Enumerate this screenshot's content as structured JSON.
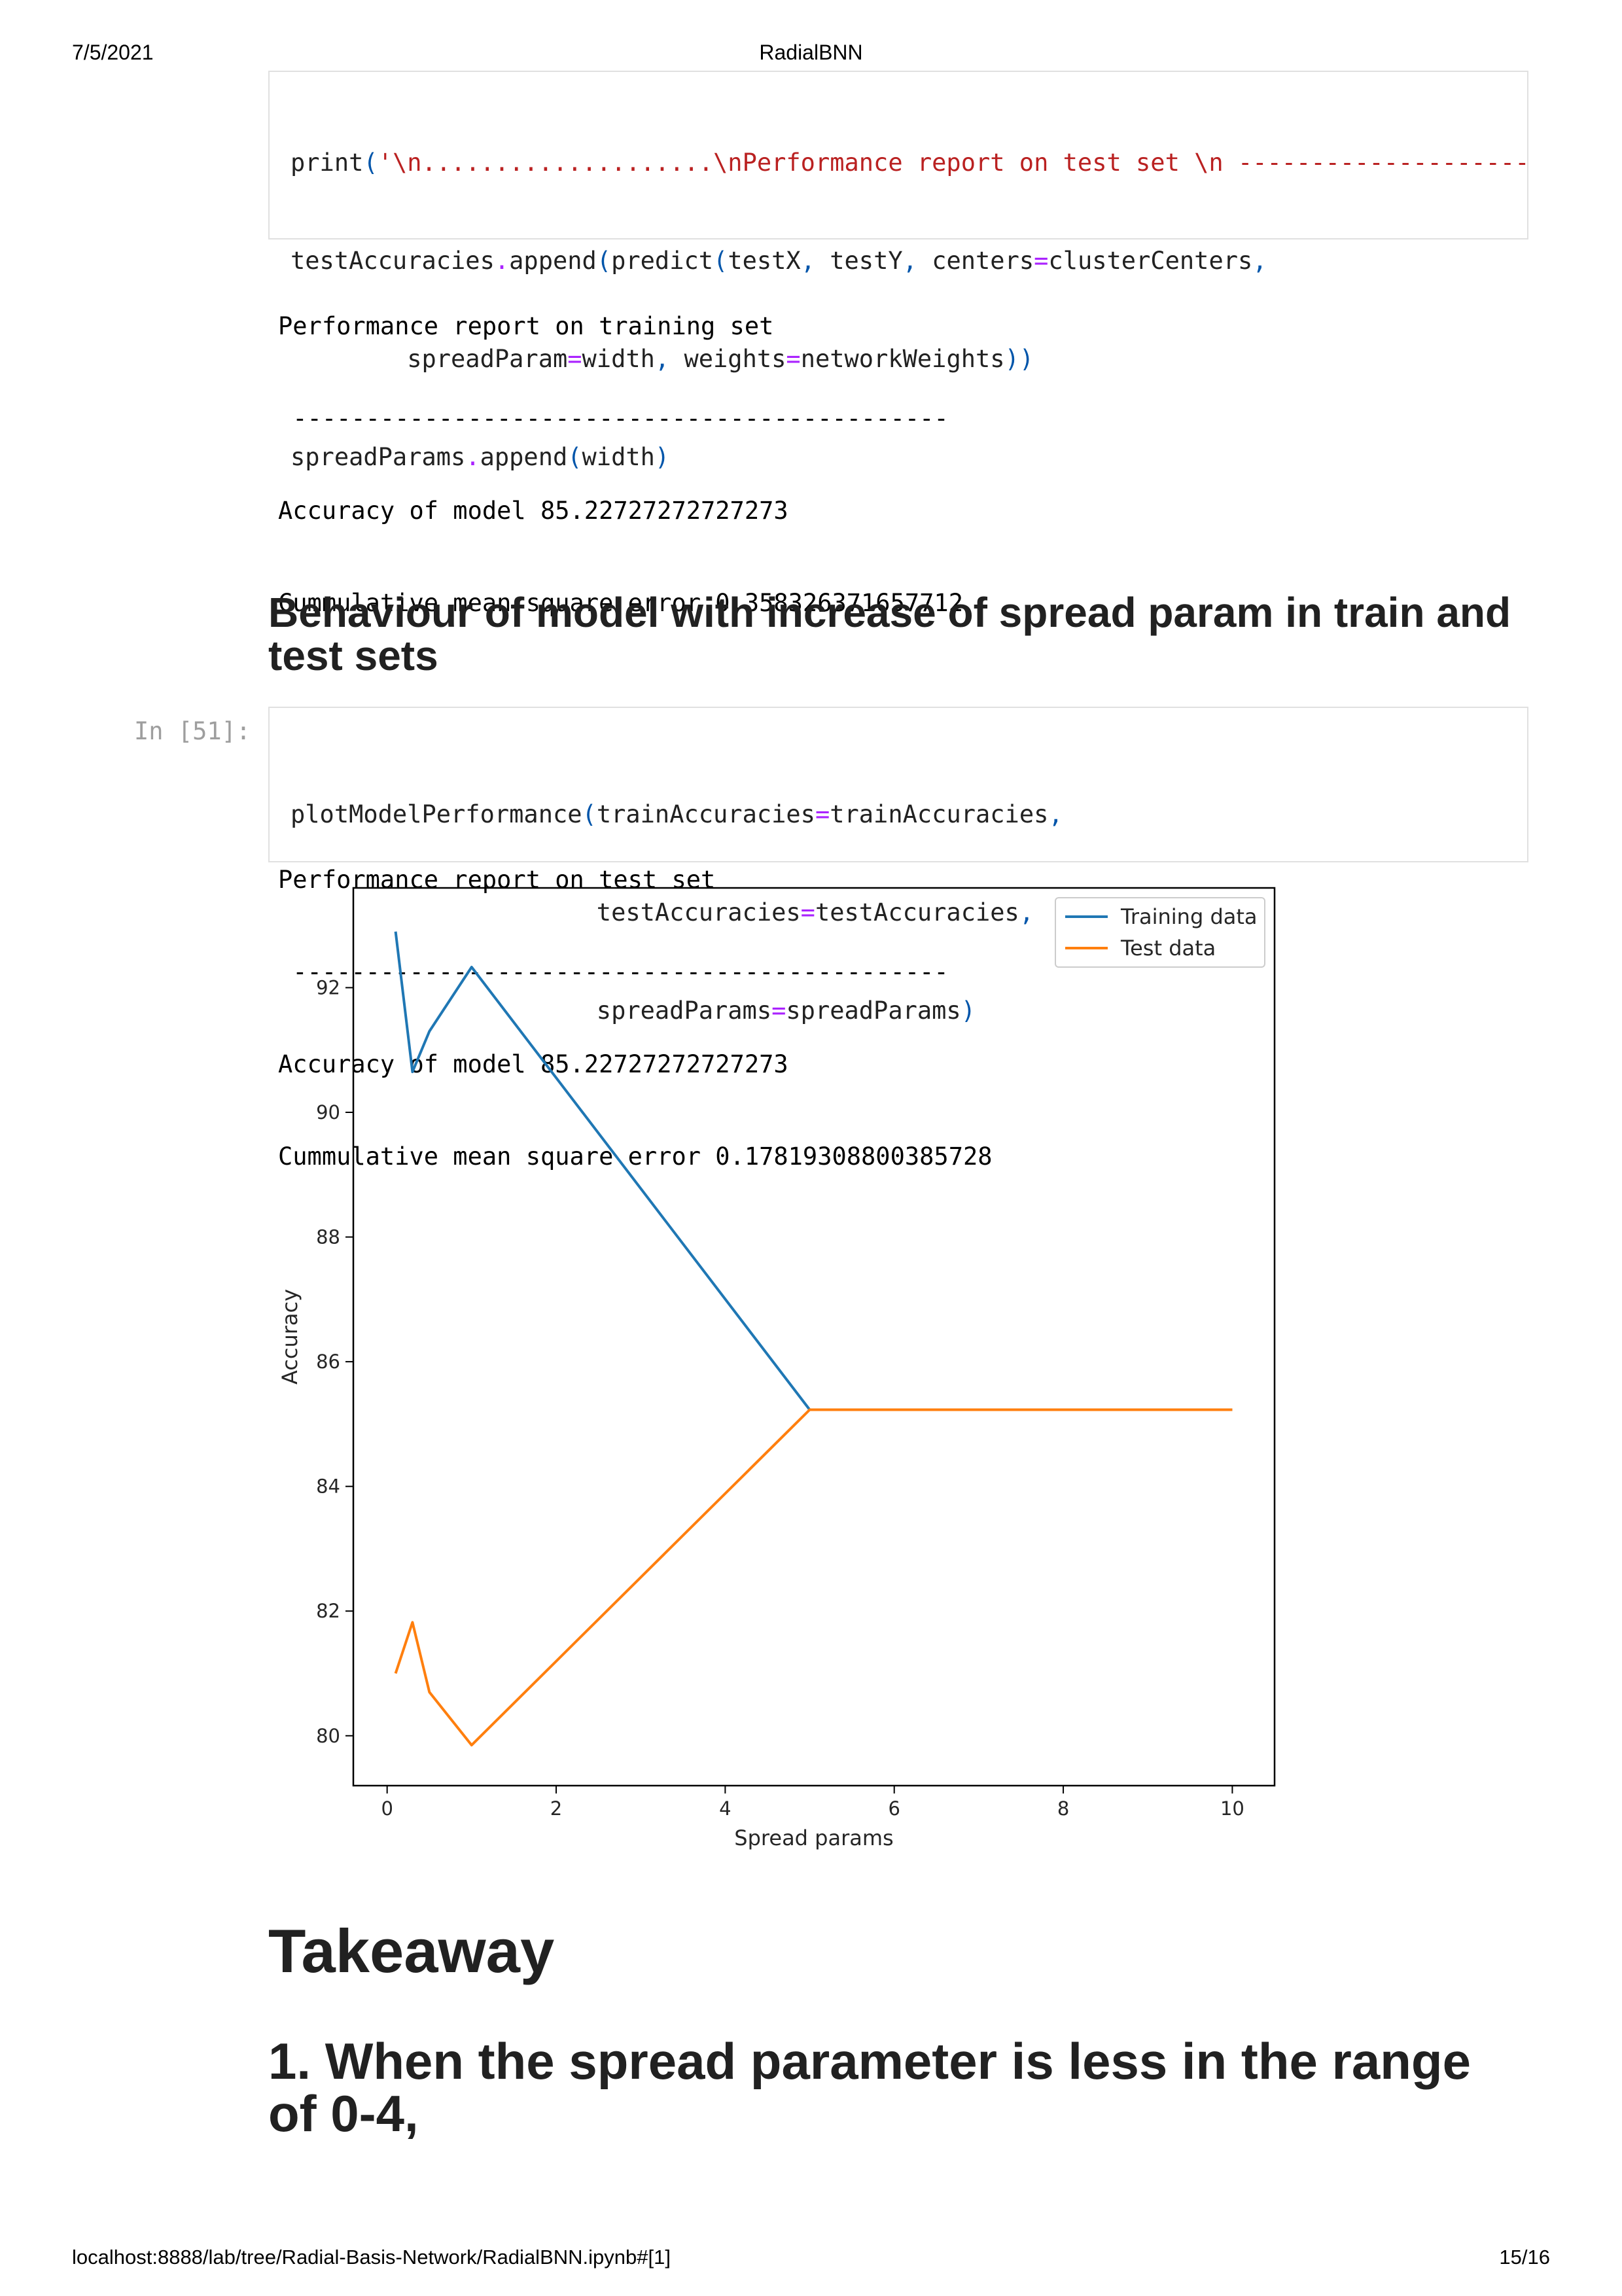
{
  "header": {
    "date": "7/5/2021",
    "title": "RadialBNN"
  },
  "footer": {
    "url": "localhost:8888/lab/tree/Radial-Basis-Network/RadialBNN.ipynb#[1]",
    "page": "15/16"
  },
  "cell1": {
    "line1": {
      "p1": "print",
      "p2": "(",
      "p3": "'\\n....................\\nPerformance report on test set \\n --------------------"
    },
    "line2": {
      "p1": "testAccuracies",
      "p2": ".",
      "p3": "append",
      "p4": "(",
      "p5": "predict",
      "p6": "(",
      "p7": "testX",
      "p8": ",",
      "p9": " testY",
      "p10": ",",
      "p11": " centers",
      "p12": "=",
      "p13": "clusterCenters",
      "p14": ","
    },
    "line3": {
      "p1": "        spreadParam",
      "p2": "=",
      "p3": "width",
      "p4": ",",
      "p5": " weights",
      "p6": "=",
      "p7": "networkWeights",
      "p8": "))"
    },
    "line4": {
      "p1": "spreadParams",
      "p2": ".",
      "p3": "append",
      "p4": "(",
      "p5": "width",
      "p6": ")"
    }
  },
  "output1": {
    "lines": [
      "Performance report on training set",
      " ---------------------------------------------",
      "Accuracy of model 85.22727272727273",
      "Cummulative mean square error 0.358326371657712",
      "",
      "....................",
      "Performance report on test set",
      " ---------------------------------------------",
      "Accuracy of model 85.22727272727273",
      "Cummulative mean square error 0.17819308800385728"
    ]
  },
  "heading_behaviour": "Behaviour of model with increase of spread param in train and test sets",
  "cell2": {
    "prompt": "In [51]:",
    "line1": {
      "p1": "plotModelPerformance",
      "p2": "(",
      "p3": "trainAccuracies",
      "p4": "=",
      "p5": "trainAccuracies",
      "p6": ","
    },
    "line2": {
      "p1": "                     testAccuracies",
      "p2": "=",
      "p3": "testAccuracies",
      "p4": ","
    },
    "line3": {
      "p1": "                     spreadParams",
      "p2": "=",
      "p3": "spreadParams",
      "p4": ")"
    }
  },
  "chart_data": {
    "type": "line",
    "title": "",
    "xlabel": "Spread params",
    "ylabel": "Accuracy",
    "xlim": [
      -0.4,
      10.5
    ],
    "ylim": [
      79.2,
      93.6
    ],
    "xticks": [
      0,
      2,
      4,
      6,
      8,
      10
    ],
    "yticks": [
      80,
      82,
      84,
      86,
      88,
      90,
      92
    ],
    "grid": false,
    "legend_position": "top-right",
    "series": [
      {
        "name": "Training data",
        "color": "#1f77b4",
        "x": [
          0.1,
          0.3,
          0.5,
          1,
          5,
          10
        ],
        "y": [
          92.9,
          90.65,
          91.3,
          92.33,
          85.23,
          85.23
        ]
      },
      {
        "name": "Test data",
        "color": "#ff7f0e",
        "x": [
          0.1,
          0.3,
          0.5,
          1,
          5,
          10
        ],
        "y": [
          81.0,
          81.82,
          80.7,
          79.85,
          85.23,
          85.23
        ]
      }
    ]
  },
  "heading_takeaway": "Takeaway",
  "heading_point1": "1. When the spread parameter is less in the range of 0-4,"
}
